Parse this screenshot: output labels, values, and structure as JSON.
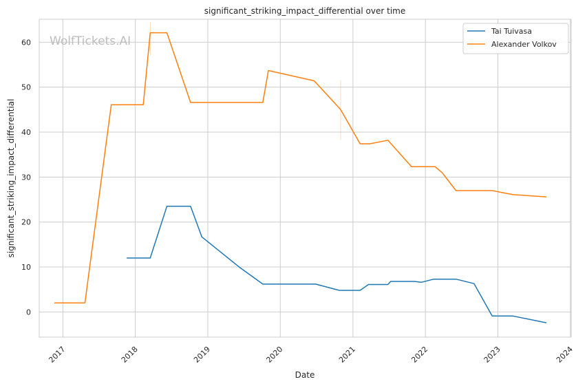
{
  "chart_data": {
    "type": "line",
    "title": "significant_striking_impact_differential over time",
    "xlabel": "Date",
    "ylabel": "significant_striking_impact_differential",
    "watermark": "WolfTickets.AI",
    "x_ticks": [
      "2017",
      "2018",
      "2019",
      "2020",
      "2021",
      "2022",
      "2023",
      "2024"
    ],
    "y_ticks": [
      0,
      10,
      20,
      30,
      40,
      50,
      60
    ],
    "xlim": [
      "2016-09-04",
      "2024-01-05"
    ],
    "ylim": [
      -5.6,
      65.1
    ],
    "grid": true,
    "legend_position": "top-right",
    "series": [
      {
        "name": "Tai Tuivasa",
        "color": "#1f77b4",
        "points": [
          [
            "2017-11-19",
            12.0
          ],
          [
            "2018-03-17",
            12.0
          ],
          [
            "2018-06-09",
            23.5
          ],
          [
            "2018-10-06",
            23.5
          ],
          [
            "2018-12-02",
            16.7
          ],
          [
            "2019-06-08",
            10.0
          ],
          [
            "2019-10-05",
            6.2
          ],
          [
            "2020-06-27",
            6.2
          ],
          [
            "2020-10-24",
            4.8
          ],
          [
            "2021-02-06",
            4.8
          ],
          [
            "2021-03-20",
            6.1
          ],
          [
            "2021-06-26",
            6.1
          ],
          [
            "2021-07-10",
            6.8
          ],
          [
            "2021-11-06",
            6.8
          ],
          [
            "2021-12-11",
            6.6
          ],
          [
            "2022-02-12",
            7.3
          ],
          [
            "2022-06-04",
            7.3
          ],
          [
            "2022-09-03",
            6.3
          ],
          [
            "2022-12-03",
            -0.9
          ],
          [
            "2023-03-18",
            -0.9
          ],
          [
            "2023-09-02",
            -2.4
          ]
        ]
      },
      {
        "name": "Alexander Volkov",
        "color": "#ff7f0e",
        "points": [
          [
            "2016-11-19",
            2.0
          ],
          [
            "2017-04-22",
            2.0
          ],
          [
            "2017-09-02",
            46.1
          ],
          [
            "2018-02-10",
            46.1
          ],
          [
            "2018-03-17",
            62.1
          ],
          [
            "2018-06-09",
            62.1
          ],
          [
            "2018-10-06",
            46.6
          ],
          [
            "2019-10-05",
            46.6
          ],
          [
            "2019-11-02",
            53.7
          ],
          [
            "2020-06-20",
            51.4
          ],
          [
            "2020-10-31",
            45.0
          ],
          [
            "2021-02-06",
            37.4
          ],
          [
            "2021-03-27",
            37.4
          ],
          [
            "2021-06-26",
            38.2
          ],
          [
            "2021-10-23",
            32.3
          ],
          [
            "2022-02-19",
            32.3
          ],
          [
            "2022-03-26",
            31.0
          ],
          [
            "2022-06-04",
            27.0
          ],
          [
            "2022-12-03",
            27.0
          ],
          [
            "2023-03-18",
            26.1
          ],
          [
            "2023-09-02",
            25.6
          ]
        ]
      }
    ],
    "error_bars": [
      {
        "series": "Alexander Volkov",
        "x": "2018-03-17",
        "y_low": 57.0,
        "y_high": 64.5
      },
      {
        "series": "Alexander Volkov",
        "x": "2020-10-31",
        "y_low": 38.3,
        "y_high": 51.5
      }
    ]
  }
}
